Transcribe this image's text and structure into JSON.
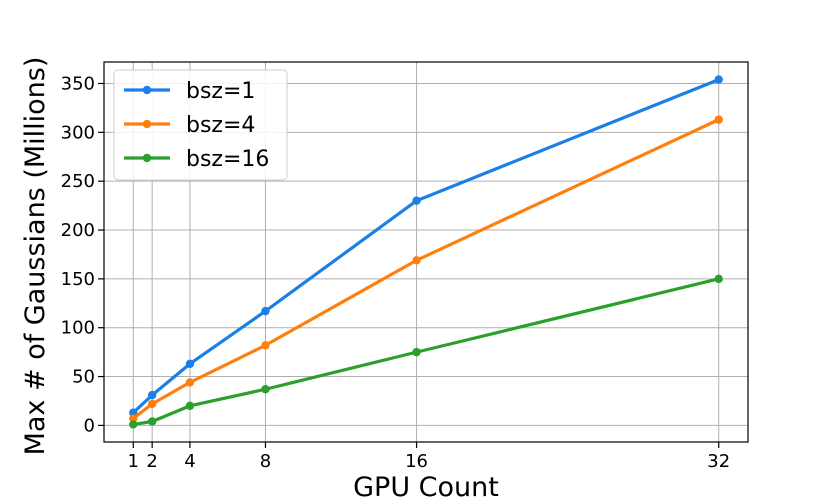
{
  "chart_data": {
    "type": "line",
    "title": "",
    "xlabel": "GPU Count",
    "ylabel": "Max # of Gaussians (Millions)",
    "x": [
      1,
      2,
      4,
      8,
      16,
      32
    ],
    "xticks": [
      1,
      2,
      4,
      8,
      16,
      32
    ],
    "xtick_labels": [
      "1",
      "2",
      "4",
      "8",
      "16",
      "32"
    ],
    "yticks": [
      0,
      50,
      100,
      150,
      200,
      250,
      300,
      350
    ],
    "ytick_labels": [
      "0",
      "50",
      "100",
      "150",
      "200",
      "250",
      "300",
      "350"
    ],
    "xlim": [
      -0.55,
      33.55
    ],
    "ylim": [
      -17,
      372
    ],
    "grid": true,
    "legend_position": "top-left",
    "series": [
      {
        "name": "bsz=1",
        "color": "#1a80e8",
        "values": [
          13,
          31,
          63,
          117,
          230,
          354
        ]
      },
      {
        "name": "bsz=4",
        "color": "#ff7f0e",
        "values": [
          7,
          22,
          44,
          82,
          169,
          313
        ]
      },
      {
        "name": "bsz=16",
        "color": "#2ca02c",
        "values": [
          1,
          4,
          20,
          37,
          75,
          150
        ]
      }
    ]
  }
}
